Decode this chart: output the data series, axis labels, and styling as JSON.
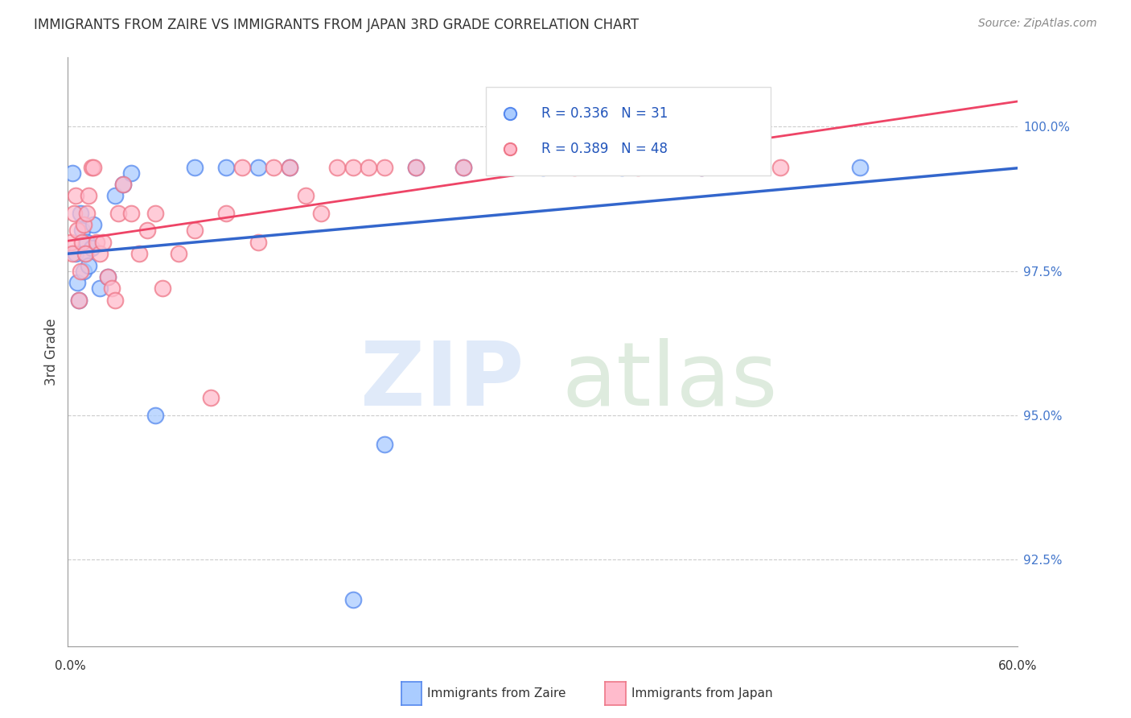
{
  "title": "IMMIGRANTS FROM ZAIRE VS IMMIGRANTS FROM JAPAN 3RD GRADE CORRELATION CHART",
  "source": "Source: ZipAtlas.com",
  "ylabel": "3rd Grade",
  "y_ticks": [
    92.5,
    95.0,
    97.5,
    100.0
  ],
  "y_tick_labels": [
    "92.5%",
    "95.0%",
    "97.5%",
    "100.0%"
  ],
  "x_min": 0.0,
  "x_max": 60.0,
  "y_min": 91.0,
  "y_max": 101.2,
  "zaire_color_face": "#aaccff",
  "zaire_color_edge": "#5588ee",
  "japan_color_face": "#ffbbcc",
  "japan_color_edge": "#ee7788",
  "zaire_line_color": "#3366cc",
  "japan_line_color": "#ee4466",
  "zaire_R": "0.336",
  "zaire_N": "31",
  "japan_R": "0.389",
  "japan_N": "48",
  "watermark_zip": "ZIP",
  "watermark_atlas": "atlas",
  "zaire_x": [
    0.3,
    0.5,
    0.6,
    0.7,
    0.8,
    0.9,
    1.0,
    1.1,
    1.2,
    1.3,
    1.5,
    1.6,
    2.0,
    2.5,
    3.0,
    3.5,
    4.0,
    5.5,
    8.0,
    10.0,
    12.0,
    14.0,
    18.0,
    20.0,
    22.0,
    25.0,
    28.0,
    30.0,
    35.0,
    40.0,
    50.0
  ],
  "zaire_y": [
    99.2,
    97.8,
    97.3,
    97.0,
    98.5,
    98.2,
    97.5,
    97.8,
    98.0,
    97.6,
    97.9,
    98.3,
    97.2,
    97.4,
    98.8,
    99.0,
    99.2,
    95.0,
    99.3,
    99.3,
    99.3,
    99.3,
    91.8,
    94.5,
    99.3,
    99.3,
    99.3,
    99.3,
    99.3,
    99.3,
    99.3
  ],
  "japan_x": [
    0.2,
    0.3,
    0.4,
    0.5,
    0.6,
    0.7,
    0.8,
    0.9,
    1.0,
    1.1,
    1.2,
    1.3,
    1.5,
    1.6,
    1.8,
    2.0,
    2.2,
    2.5,
    2.8,
    3.0,
    3.2,
    3.5,
    4.0,
    4.5,
    5.0,
    5.5,
    6.0,
    7.0,
    8.0,
    9.0,
    10.0,
    11.0,
    12.0,
    13.0,
    14.0,
    15.0,
    16.0,
    17.0,
    18.0,
    19.0,
    20.0,
    22.0,
    25.0,
    28.0,
    32.0,
    36.0,
    40.0,
    45.0
  ],
  "japan_y": [
    98.0,
    97.8,
    98.5,
    98.8,
    98.2,
    97.0,
    97.5,
    98.0,
    98.3,
    97.8,
    98.5,
    98.8,
    99.3,
    99.3,
    98.0,
    97.8,
    98.0,
    97.4,
    97.2,
    97.0,
    98.5,
    99.0,
    98.5,
    97.8,
    98.2,
    98.5,
    97.2,
    97.8,
    98.2,
    95.3,
    98.5,
    99.3,
    98.0,
    99.3,
    99.3,
    98.8,
    98.5,
    99.3,
    99.3,
    99.3,
    99.3,
    99.3,
    99.3,
    99.3,
    99.3,
    99.3,
    99.3,
    99.3
  ]
}
